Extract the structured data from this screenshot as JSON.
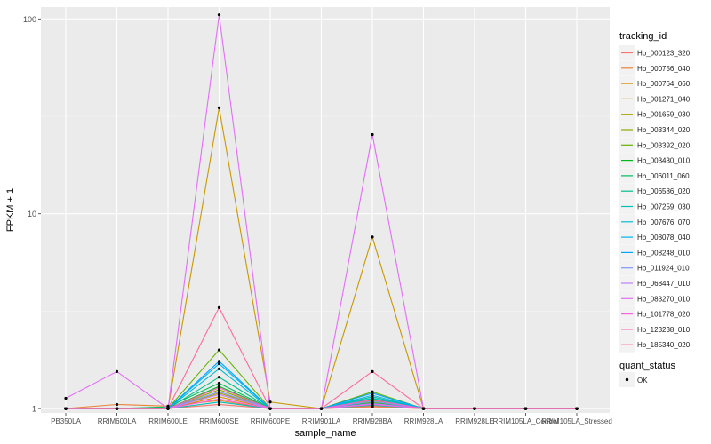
{
  "chart_data": {
    "type": "line",
    "title": "",
    "xlabel": "sample_name",
    "ylabel": "FPKM + 1",
    "y_scale": "log10",
    "ylim": [
      0.95,
      115
    ],
    "y_ticks": [
      1,
      10,
      100
    ],
    "y_tick_labels": [
      "1",
      "10",
      "100"
    ],
    "grid": true,
    "legend_position": "right",
    "categories": [
      "PB350LA",
      "RRIM600LA",
      "RRIM600LE",
      "RRIM600SE",
      "RRIM600PE",
      "RRIM901LA",
      "RRIM928BA",
      "RRIM928LA",
      "RRIM928LE",
      "RRIM105LA_Control",
      "RRIM105LA_Stressed"
    ],
    "category_labels": [
      "PB350LA",
      "RRIM600LA",
      "RRIM600LE",
      "RRIM600SE",
      "RRIM600PE",
      "RRIM901LA",
      "RRIM928BA",
      "RRIM928LA",
      "RRIM928LE",
      "RRIM105LA_Control",
      "RRIM105LA_Stressed"
    ],
    "legend_title": "tracking_id",
    "point_legend_title": "quant_status",
    "point_legend_label": "OK",
    "series": [
      {
        "name": "Hb_000123_320",
        "color": "#F8766D",
        "values": [
          1,
          1,
          1,
          1.05,
          1,
          1,
          1.02,
          1,
          1,
          1,
          1
        ]
      },
      {
        "name": "Hb_000756_040",
        "color": "#EC8239",
        "values": [
          1,
          1.05,
          1.03,
          1.1,
          1,
          1,
          1.03,
          1,
          1,
          1,
          1
        ]
      },
      {
        "name": "Hb_000764_060",
        "color": "#DB8E00",
        "values": [
          1,
          1,
          1,
          1.15,
          1,
          1,
          1.05,
          1,
          1,
          1,
          1
        ]
      },
      {
        "name": "Hb_001271_040",
        "color": "#C79800",
        "values": [
          1,
          1,
          1,
          35,
          1.08,
          1,
          7.6,
          1,
          1,
          1,
          1
        ]
      },
      {
        "name": "Hb_001659_030",
        "color": "#AEA200",
        "values": [
          1,
          1,
          1,
          1.2,
          1,
          1,
          1.08,
          1,
          1,
          1,
          1
        ]
      },
      {
        "name": "Hb_003344_020",
        "color": "#8FAA00",
        "values": [
          1,
          1,
          1,
          1.25,
          1,
          1,
          1.1,
          1,
          1,
          1,
          1
        ]
      },
      {
        "name": "Hb_003392_020",
        "color": "#64B200",
        "values": [
          1,
          1,
          1,
          2.0,
          1,
          1,
          1.22,
          1,
          1,
          1,
          1
        ]
      },
      {
        "name": "Hb_003430_010",
        "color": "#00B81B",
        "values": [
          1,
          1,
          1,
          1.3,
          1,
          1,
          1.12,
          1,
          1,
          1,
          1
        ]
      },
      {
        "name": "Hb_006011_060",
        "color": "#00BD5C",
        "values": [
          1,
          1,
          1.02,
          1.35,
          1,
          1,
          1.07,
          1,
          1,
          1,
          1
        ]
      },
      {
        "name": "Hb_006586_020",
        "color": "#00C08E",
        "values": [
          1,
          1,
          1,
          1.45,
          1,
          1,
          1.15,
          1,
          1,
          1,
          1
        ]
      },
      {
        "name": "Hb_007259_030",
        "color": "#00C1B7",
        "values": [
          1,
          1,
          1,
          1.08,
          1,
          1,
          1.04,
          1,
          1,
          1,
          1
        ]
      },
      {
        "name": "Hb_007676_070",
        "color": "#00BDD4",
        "values": [
          1,
          1,
          1,
          1.6,
          1,
          1,
          1.13,
          1,
          1,
          1,
          1
        ]
      },
      {
        "name": "Hb_008078_040",
        "color": "#00B5EE",
        "values": [
          1,
          1,
          1,
          1.7,
          1,
          1,
          1.17,
          1,
          1,
          1,
          1
        ]
      },
      {
        "name": "Hb_008248_010",
        "color": "#00A7FF",
        "values": [
          1,
          1,
          1,
          1.75,
          1,
          1,
          1.2,
          1,
          1,
          1,
          1
        ]
      },
      {
        "name": "Hb_011924_010",
        "color": "#7F96FF",
        "values": [
          1,
          1,
          1,
          1.22,
          1,
          1,
          1.09,
          1,
          1,
          1,
          1
        ]
      },
      {
        "name": "Hb_068447_010",
        "color": "#BC81FF",
        "values": [
          1,
          1,
          1,
          1.18,
          1,
          1,
          1.06,
          1,
          1,
          1,
          1
        ]
      },
      {
        "name": "Hb_083270_010",
        "color": "#E26EF7",
        "values": [
          1.13,
          1.55,
          1,
          105,
          1,
          1,
          25.5,
          1,
          1,
          1,
          1
        ]
      },
      {
        "name": "Hb_101778_020",
        "color": "#F863DF",
        "values": [
          1,
          1,
          1,
          1.12,
          1,
          1,
          1.05,
          1,
          1,
          1,
          1
        ]
      },
      {
        "name": "Hb_123238_010",
        "color": "#FF62BF",
        "values": [
          1,
          1,
          1,
          1.28,
          1,
          1,
          1.11,
          1,
          1,
          1,
          1
        ]
      },
      {
        "name": "Hb_185340_020",
        "color": "#FF6A9A",
        "values": [
          1,
          1,
          1,
          3.3,
          1,
          1,
          1.55,
          1,
          1,
          1,
          1
        ]
      }
    ]
  }
}
